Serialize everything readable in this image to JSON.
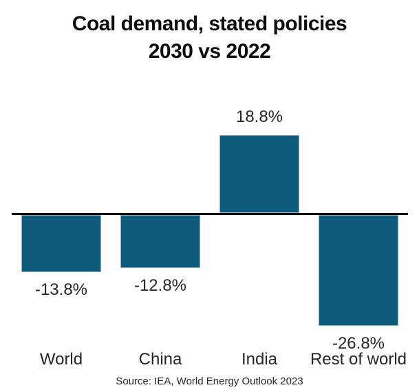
{
  "title": {
    "line1": "Coal demand, stated policies",
    "line2": "2030 vs 2022"
  },
  "source": "Source: IEA, World Energy Outlook 2023",
  "colors": {
    "bar": "#0d5a7c",
    "bar_border": "#8fafc0",
    "axis": "#000000",
    "label": "#262626",
    "title": "#0d0d0d"
  },
  "chart_data": {
    "type": "bar",
    "title": "Coal demand, stated policies 2030 vs 2022",
    "categories": [
      "World",
      "China",
      "India",
      "Rest of world"
    ],
    "values": [
      -13.8,
      -12.8,
      18.8,
      -26.8
    ],
    "value_labels": [
      "-13.8%",
      "-12.8%",
      "18.8%",
      "-26.8%"
    ],
    "unit": "%",
    "xlabel": "",
    "ylabel": "",
    "baseline": 0,
    "ylim": [
      -30,
      22
    ],
    "grid": false,
    "legend": false,
    "annotations": [
      "Source: IEA, World Energy Outlook 2023"
    ]
  }
}
